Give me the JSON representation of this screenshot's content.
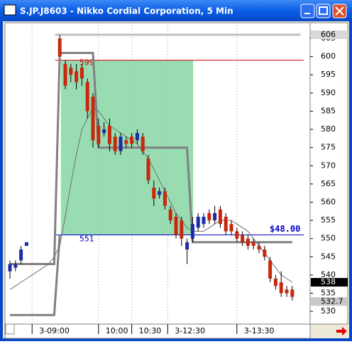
{
  "chart_data": {
    "type": "candlestick",
    "title": "S.JP.J8603 - Nikko Cordial Corporation, 5 Min",
    "ylim": [
      526.7,
      609.3
    ],
    "yticks": [
      530,
      535,
      540,
      545,
      550,
      555,
      560,
      565,
      570,
      575,
      580,
      585,
      590,
      595,
      600,
      605
    ],
    "xlim": [
      -0.77,
      54.1
    ],
    "xticks": [
      {
        "value": 4,
        "label": "3-09:00"
      },
      {
        "value": 16,
        "label": "10:00"
      },
      {
        "value": 22,
        "label": "10:30"
      },
      {
        "value": 28.5,
        "label": "3-12:30"
      },
      {
        "value": 41,
        "label": "3-13:30"
      }
    ],
    "up_color": "#1c2ca8",
    "down_color": "#c8280c",
    "open": [
      541,
      542,
      544,
      548,
      null,
      null,
      null,
      null,
      null,
      605,
      598,
      597,
      596,
      597,
      593,
      589,
      581,
      579,
      581,
      578,
      574,
      577,
      578,
      577,
      578,
      572,
      564,
      562,
      563,
      558,
      556,
      555,
      547,
      550,
      553,
      554,
      557,
      555,
      558,
      556,
      554,
      552,
      551,
      550,
      549,
      548,
      547,
      544,
      539,
      538,
      536,
      536
    ],
    "close": [
      543,
      543,
      547,
      549,
      null,
      null,
      null,
      null,
      null,
      600,
      592,
      595,
      593,
      594,
      585,
      577,
      576,
      580,
      576,
      574,
      578,
      576,
      576,
      579,
      574,
      566,
      561,
      563,
      559,
      555,
      551,
      550,
      549,
      554,
      556,
      556,
      555,
      557,
      554,
      552,
      552,
      550,
      549,
      548,
      548,
      547,
      545,
      539,
      537,
      535,
      535,
      534
    ],
    "high": [
      544,
      544,
      548,
      549,
      null,
      null,
      null,
      null,
      null,
      606,
      599,
      598,
      598,
      598,
      594,
      590,
      583,
      582,
      583,
      579,
      579,
      578,
      579,
      580,
      579,
      573,
      566,
      564,
      564,
      559,
      557,
      556,
      550,
      556,
      557,
      557,
      558,
      559,
      559,
      557,
      555,
      553,
      552,
      551,
      550,
      549,
      548,
      545,
      540,
      541,
      537,
      537
    ],
    "low": [
      539,
      541,
      543,
      548,
      null,
      null,
      null,
      null,
      null,
      600,
      591,
      593,
      591,
      592,
      583,
      575,
      575,
      578,
      574,
      573,
      573,
      575,
      575,
      576,
      573,
      565,
      559,
      561,
      558,
      554,
      550,
      548,
      543,
      549,
      552,
      553,
      554,
      554,
      553,
      551,
      551,
      549,
      548,
      547,
      547,
      546,
      544,
      538,
      536,
      534,
      534,
      533
    ],
    "overlays": [
      {
        "color": "#808080",
        "width": 3,
        "values": [
          543,
          543,
          543,
          543,
          543,
          543,
          543,
          543,
          543,
          601,
          601,
          601,
          601,
          601,
          601,
          601,
          575,
          575,
          575,
          575,
          575,
          575,
          575,
          575,
          575,
          575,
          575,
          575,
          575,
          575,
          575,
          575,
          575,
          549,
          549,
          549,
          549,
          549,
          549,
          549,
          549,
          549,
          549,
          549,
          549,
          549,
          549,
          549,
          549,
          549,
          549,
          549
        ]
      },
      {
        "color": "#808080",
        "width": 3,
        "values": [
          529,
          529,
          529,
          529,
          529,
          529,
          529,
          529,
          529,
          551
        ]
      },
      {
        "color": "#707070",
        "width": 1,
        "values": [
          536,
          537,
          538,
          539,
          540,
          541,
          542,
          543,
          545,
          548,
          556,
          565,
          573,
          580,
          583,
          586,
          585,
          583,
          581,
          580,
          579,
          578,
          577,
          576,
          574,
          572,
          569,
          566,
          563,
          560,
          557,
          555,
          553,
          552,
          552,
          552,
          553,
          554,
          555,
          555,
          555,
          554,
          553,
          552,
          550,
          548,
          546,
          544,
          542,
          540,
          539,
          538
        ]
      }
    ],
    "box": {
      "x": [
        9.2,
        33.1
      ],
      "y": [
        551,
        599
      ],
      "color": "#8fd8a8"
    },
    "hlines": [
      {
        "value": 606,
        "color": "#c0c0c0",
        "labeled": false
      },
      {
        "value": 599,
        "color": "#cc0000",
        "labeled": true
      },
      {
        "value": 551,
        "color": "#0000cc",
        "labeled": true
      }
    ],
    "range_label": "$48.00",
    "price_markers": [
      {
        "value": 606,
        "color": "#d8d8d8",
        "text_color": "#000000"
      },
      {
        "value": 538,
        "color": "#000000",
        "text_color": "#ffffff"
      },
      {
        "value": 532.7,
        "color": "#c8c8c8",
        "text_color": "#000000"
      }
    ]
  }
}
